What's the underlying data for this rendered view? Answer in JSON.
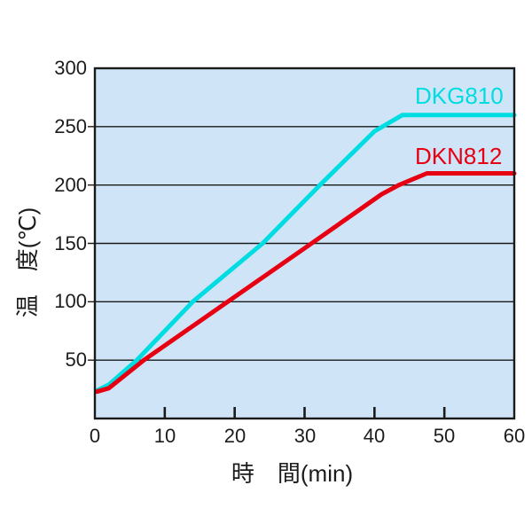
{
  "chart_data": {
    "type": "line",
    "title": "",
    "xlabel": "時　間(min)",
    "ylabel": "温　度(℃)",
    "xlim": [
      0,
      60
    ],
    "ylim": [
      0,
      300
    ],
    "xticks": [
      0,
      10,
      20,
      30,
      40,
      50,
      60
    ],
    "yticks": [
      50,
      100,
      150,
      200,
      250,
      300
    ],
    "grid": true,
    "legend_position": "inline-labels",
    "colors": {
      "plot_background": "#cfe5f7",
      "axis": "#1a1a1a",
      "page_background": "#ffffff"
    },
    "series": [
      {
        "name": "DKG810",
        "color": "#00dde2",
        "points": [
          [
            0.3,
            24
          ],
          [
            2,
            29
          ],
          [
            6,
            50
          ],
          [
            14,
            100
          ],
          [
            24,
            150
          ],
          [
            32.2,
            200
          ],
          [
            40,
            246
          ],
          [
            42,
            253
          ],
          [
            44,
            260
          ],
          [
            60,
            260
          ]
        ]
      },
      {
        "name": "DKN812",
        "color": "#e60012",
        "points": [
          [
            0.3,
            23
          ],
          [
            2,
            26
          ],
          [
            7,
            50
          ],
          [
            19,
            100
          ],
          [
            31,
            150
          ],
          [
            41,
            192
          ],
          [
            43.5,
            200
          ],
          [
            45.5,
            205
          ],
          [
            47.5,
            210
          ],
          [
            60,
            210
          ]
        ]
      }
    ]
  }
}
